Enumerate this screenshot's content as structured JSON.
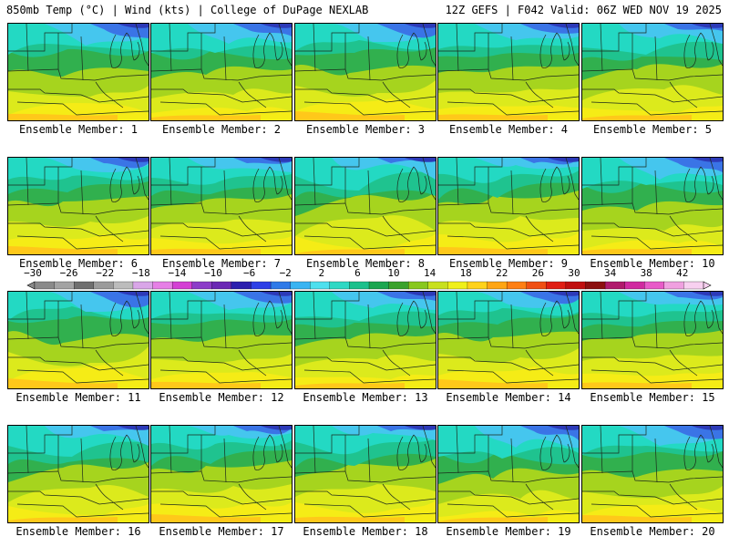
{
  "header": {
    "left": "850mb Temp (°C) | Wind (kts) | College of DuPage NEXLAB",
    "right": "12Z GEFS | F042 Valid: 06Z WED NOV 19 2025"
  },
  "panels": [
    {
      "label": "Ensemble Member: 1"
    },
    {
      "label": "Ensemble Member: 2"
    },
    {
      "label": "Ensemble Member: 3"
    },
    {
      "label": "Ensemble Member: 4"
    },
    {
      "label": "Ensemble Member: 5"
    },
    {
      "label": "Ensemble Member: 6"
    },
    {
      "label": "Ensemble Member: 7"
    },
    {
      "label": "Ensemble Member: 8"
    },
    {
      "label": "Ensemble Member: 9"
    },
    {
      "label": "Ensemble Member: 10"
    },
    {
      "label": "Ensemble Member: 11"
    },
    {
      "label": "Ensemble Member: 12"
    },
    {
      "label": "Ensemble Member: 13"
    },
    {
      "label": "Ensemble Member: 14"
    },
    {
      "label": "Ensemble Member: 15"
    },
    {
      "label": "Ensemble Member: 16"
    },
    {
      "label": "Ensemble Member: 17"
    },
    {
      "label": "Ensemble Member: 18"
    },
    {
      "label": "Ensemble Member: 19"
    },
    {
      "label": "Ensemble Member: 20"
    }
  ],
  "colorbar": {
    "ticks": [
      "−30",
      "−26",
      "−22",
      "−18",
      "−14",
      "−10",
      "−6",
      "−2",
      "2",
      "6",
      "10",
      "14",
      "18",
      "22",
      "26",
      "30",
      "34",
      "38",
      "42"
    ],
    "colors": [
      "#8a8a8a",
      "#a3a3a3",
      "#6f6f6f",
      "#9b9b9b",
      "#bcbcbc",
      "#d9a6e8",
      "#e67fe6",
      "#d43fd4",
      "#8c3cc8",
      "#6a28b4",
      "#2c1fae",
      "#2d3fe6",
      "#2f7ae8",
      "#39b4f2",
      "#4ee0ee",
      "#2fd8c4",
      "#1cc08c",
      "#1ca650",
      "#3aa22c",
      "#88c81e",
      "#c8e01e",
      "#f0f01a",
      "#ffd21a",
      "#ffa514",
      "#ff7f14",
      "#f04f14",
      "#e01e14",
      "#c00f0f",
      "#8c0f0f",
      "#b01a6c",
      "#d02aa0",
      "#e85ac8",
      "#f0a0e0",
      "#f8d0f0"
    ]
  }
}
